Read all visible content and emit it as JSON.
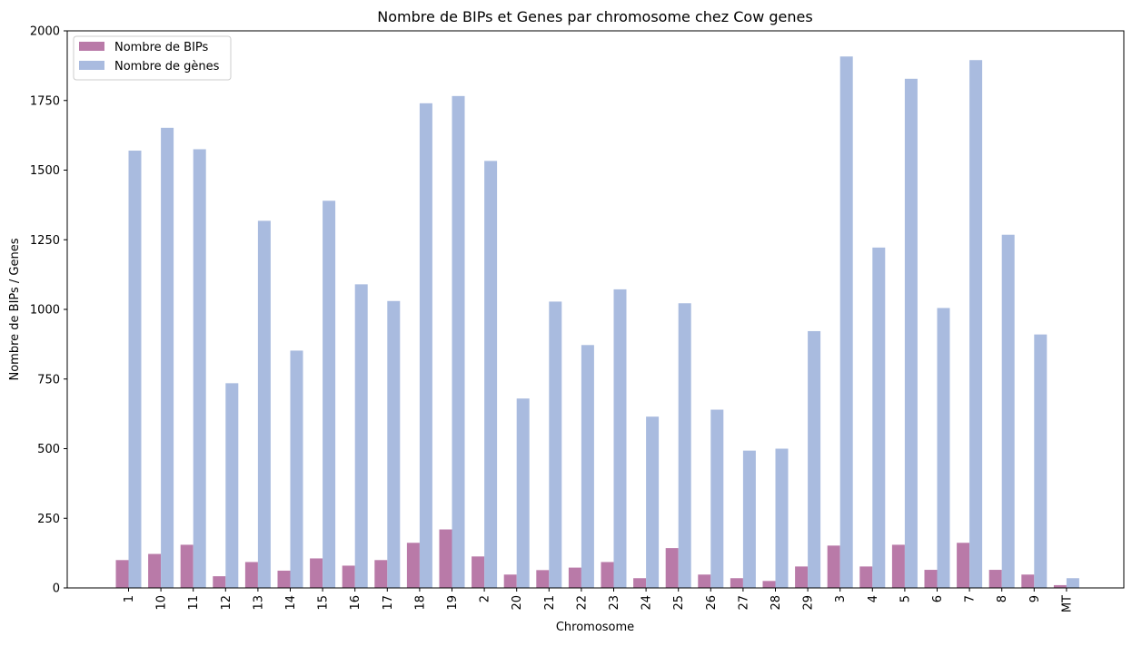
{
  "chart_data": {
    "type": "bar",
    "title": "Nombre de BIPs et Genes par chromosome chez Cow genes",
    "xlabel": "Chromosome",
    "ylabel": "Nombre de BIPs / Genes",
    "ylim": [
      0,
      2000
    ],
    "yticks": [
      0,
      250,
      500,
      750,
      1000,
      1250,
      1500,
      1750,
      2000
    ],
    "grid": false,
    "legend_position": "top-left",
    "categories": [
      "1",
      "10",
      "11",
      "12",
      "13",
      "14",
      "15",
      "16",
      "17",
      "18",
      "19",
      "2",
      "20",
      "21",
      "22",
      "23",
      "24",
      "25",
      "26",
      "27",
      "28",
      "29",
      "3",
      "4",
      "5",
      "6",
      "7",
      "8",
      "9",
      "MT"
    ],
    "series": [
      {
        "name": "Nombre de BIPs",
        "color": "#b97aa8",
        "values": [
          100,
          122,
          155,
          42,
          93,
          62,
          106,
          80,
          100,
          162,
          210,
          113,
          48,
          64,
          73,
          93,
          35,
          143,
          48,
          35,
          25,
          77,
          152,
          77,
          155,
          65,
          162,
          65,
          48,
          10
        ]
      },
      {
        "name": "Nombre de gènes",
        "color": "#a9bbdf",
        "values": [
          1570,
          1652,
          1575,
          735,
          1318,
          852,
          1390,
          1090,
          1030,
          1740,
          1766,
          1533,
          680,
          1028,
          872,
          1072,
          615,
          1022,
          640,
          493,
          500,
          922,
          1908,
          1222,
          1828,
          1005,
          1895,
          1268,
          910,
          35
        ]
      }
    ]
  }
}
